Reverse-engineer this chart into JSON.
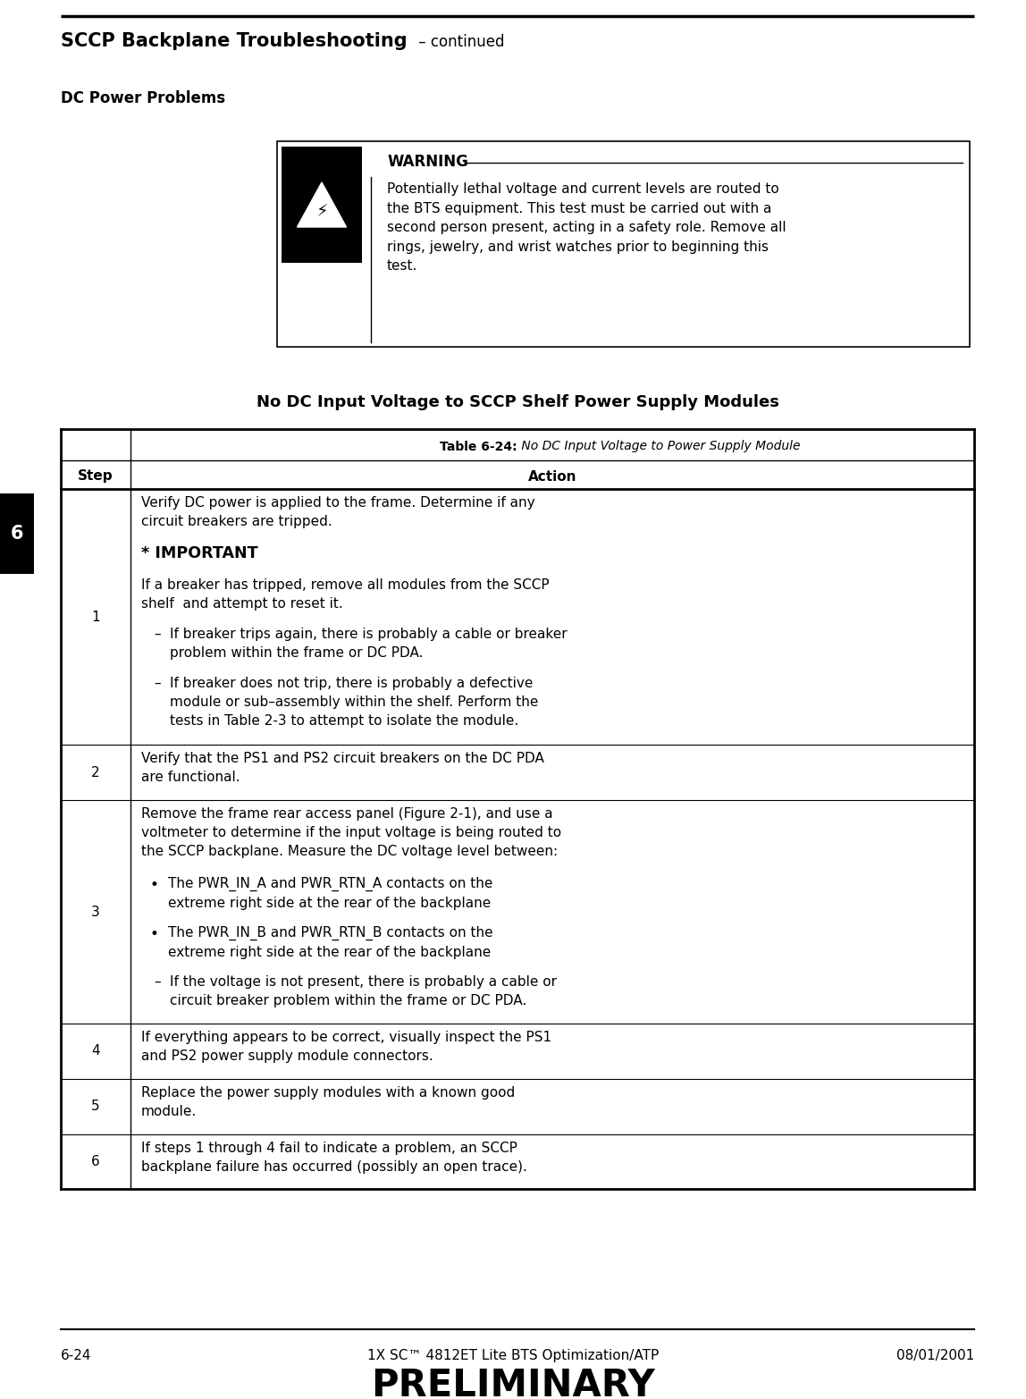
{
  "page_width": 11.48,
  "page_height": 15.65,
  "dpi": 100,
  "bg_color": "#ffffff",
  "header_title_bold": "SCCP Backplane Troubleshooting",
  "header_title_normal": " – continued",
  "section_label": "DC Power Problems",
  "warning_title": "WARNING",
  "warning_text": "Potentially lethal voltage and current levels are routed to\nthe BTS equipment. This test must be carried out with a\nsecond person present, acting in a safety role. Remove all\nrings, jewelry, and wrist watches prior to beginning this\ntest.",
  "subsection_title": "No DC Input Voltage to SCCP Shelf Power Supply Modules",
  "table_caption_bold": "Table 6-24:",
  "table_caption_normal": " No DC Input Voltage to Power Supply Module",
  "table_col1": "Step",
  "table_col2": "Action",
  "table_rows": [
    {
      "step": "1",
      "action": "Verify DC power is applied to the frame. Determine if any\ncircuit breakers are tripped.",
      "extra": [
        {
          "type": "important_header",
          "text": "* IMPORTANT"
        },
        {
          "type": "important_body",
          "text": "If a breaker has tripped, remove all modules from the SCCP\nshelf  and attempt to reset it."
        },
        {
          "type": "bullet",
          "text": "If breaker trips again, there is probably a cable or breaker\nproblem within the frame or DC PDA."
        },
        {
          "type": "bullet",
          "text": "If breaker does not trip, there is probably a defective\nmodule or sub–assembly within the shelf. Perform the\ntests in Table 2-3 to attempt to isolate the module."
        }
      ]
    },
    {
      "step": "2",
      "action": "Verify that the PS1 and PS2 circuit breakers on the DC PDA\nare functional.",
      "extra": []
    },
    {
      "step": "3",
      "action": "Remove the frame rear access panel (Figure 2-1), and use a\nvoltmeter to determine if the input voltage is being routed to\nthe SCCP backplane. Measure the DC voltage level between:",
      "extra": [
        {
          "type": "dot_bullet",
          "text": "The PWR_IN_A and PWR_RTN_A contacts on the\nextreme right side at the rear of the backplane"
        },
        {
          "type": "dot_bullet",
          "text": "The PWR_IN_B and PWR_RTN_B contacts on the\nextreme right side at the rear of the backplane"
        },
        {
          "type": "bullet",
          "text": "If the voltage is not present, there is probably a cable or\ncircuit breaker problem within the frame or DC PDA."
        }
      ]
    },
    {
      "step": "4",
      "action": "If everything appears to be correct, visually inspect the PS1\nand PS2 power supply module connectors.",
      "extra": []
    },
    {
      "step": "5",
      "action": "Replace the power supply modules with a known good\nmodule.",
      "extra": []
    },
    {
      "step": "6",
      "action": "If steps 1 through 4 fail to indicate a problem, an SCCP\nbackplane failure has occurred (possibly an open trace).",
      "extra": []
    }
  ],
  "footer_left": "6-24",
  "footer_center": "1X SC™ 4812ET Lite BTS Optimization/ATP",
  "footer_right": "08/01/2001",
  "footer_prelim": "PRELIMINARY",
  "chapter_tab": "6"
}
